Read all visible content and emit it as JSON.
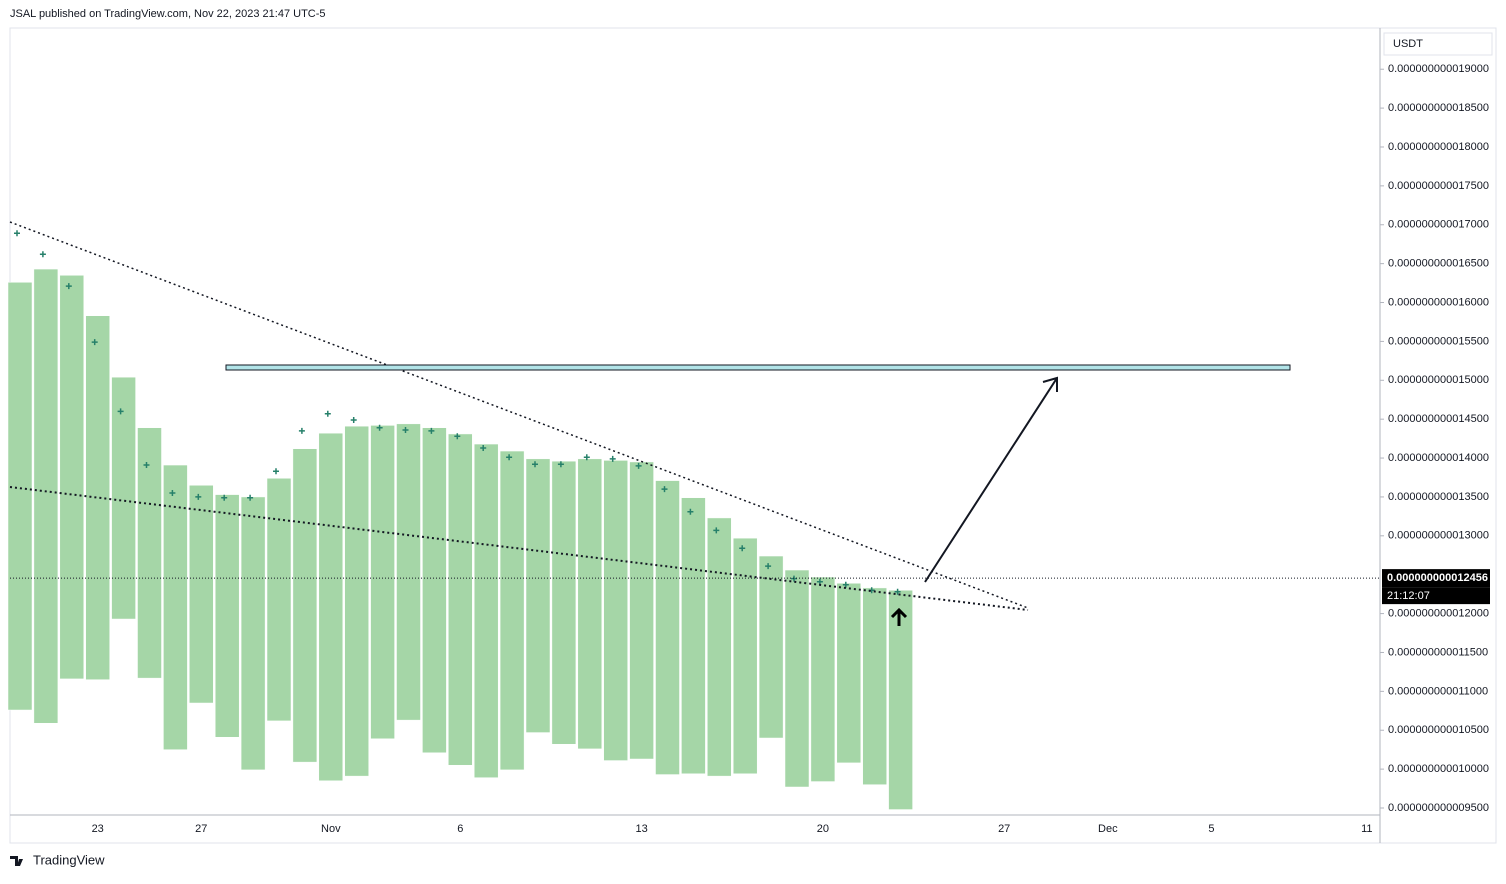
{
  "header": "JSAL published on TradingView.com, Nov 22, 2023 21:47 UTC-5",
  "footer": "TradingView",
  "chart_data": {
    "type": "range-bar",
    "currency": "USDT",
    "categories": [
      null,
      null,
      null,
      "23",
      null,
      null,
      null,
      "27",
      null,
      null,
      null,
      null,
      "Nov",
      null,
      null,
      null,
      null,
      "6",
      null,
      null,
      null,
      null,
      null,
      null,
      "13",
      null,
      null,
      null,
      null,
      null,
      null,
      "20",
      null,
      null,
      null,
      null,
      null,
      null,
      "27",
      null,
      null,
      null,
      "Dec",
      null,
      null,
      null,
      "5",
      null,
      null,
      null,
      null,
      null,
      "11"
    ],
    "high": [
      1.626e-11,
      1.643e-11,
      1.635e-11,
      1.583e-11,
      1.504e-11,
      1.439e-11,
      1.391e-11,
      1.365e-11,
      1.353e-11,
      1.35e-11,
      1.374e-11,
      1.412e-11,
      1.432e-11,
      1.441e-11,
      1.442e-11,
      1.444e-11,
      1.439e-11,
      1.431e-11,
      1.418e-11,
      1.409e-11,
      1.399e-11,
      1.396e-11,
      1.399e-11,
      1.397e-11,
      1.395e-11,
      1.371e-11,
      1.349e-11,
      1.323e-11,
      1.297e-11,
      1.274e-11,
      1.256e-11,
      1.247e-11,
      1.239e-11,
      1.233e-11,
      1.23e-11,
      null,
      null,
      null,
      null,
      null,
      null,
      null,
      null,
      null,
      null,
      null,
      null,
      null,
      null,
      null,
      null,
      null,
      null
    ],
    "low": [
      1.076e-11,
      1.059e-11,
      1.116e-11,
      1.115e-11,
      1.193e-11,
      1.117e-11,
      1.025e-11,
      1.085e-11,
      1.041e-11,
      9.99e-12,
      1.062e-11,
      1.009e-11,
      9.85e-12,
      9.91e-12,
      1.039e-11,
      1.063e-11,
      1.021e-11,
      1.005e-11,
      9.89e-12,
      9.99e-12,
      1.047e-11,
      1.032e-11,
      1.026e-11,
      1.011e-11,
      1.013e-11,
      9.93e-12,
      9.94e-12,
      9.91e-12,
      9.94e-12,
      1.04e-11,
      9.77e-12,
      9.84e-12,
      1.008e-11,
      9.8e-12,
      9.48e-12,
      null,
      null,
      null,
      null,
      null,
      null,
      null,
      null,
      null,
      null,
      null,
      null,
      null,
      null,
      null,
      null,
      null,
      null
    ],
    "markers": [
      1.689e-11,
      1.662e-11,
      1.621e-11,
      1.549e-11,
      1.46e-11,
      1.391e-11,
      1.355e-11,
      1.35e-11,
      1.349e-11,
      1.349e-11,
      1.383e-11,
      1.435e-11,
      1.457e-11,
      1.449e-11,
      1.439e-11,
      1.436e-11,
      1.435e-11,
      1.428e-11,
      1.413e-11,
      1.401e-11,
      1.392e-11,
      1.392e-11,
      1.401e-11,
      1.399e-11,
      1.39e-11,
      1.36e-11,
      1.331e-11,
      1.307e-11,
      1.284e-11,
      1.261e-11,
      1.245e-11,
      1.241e-11,
      1.237e-11,
      1.23e-11,
      1.228e-11,
      null,
      null,
      null,
      null,
      null,
      null,
      null,
      null,
      null,
      null,
      null,
      null,
      null,
      null,
      null,
      null,
      null,
      null
    ],
    "color": "#a5d6a7",
    "marker_color": "#26806a",
    "ylim": [
      9.41e-12,
      1.953e-11
    ],
    "yticks": [
      {
        "value": 9.5e-12,
        "label": "0.000000000009500"
      },
      {
        "value": 1e-11,
        "label": "0.000000000010000"
      },
      {
        "value": 1.05e-11,
        "label": "0.000000000010500"
      },
      {
        "value": 1.1e-11,
        "label": "0.000000000011000"
      },
      {
        "value": 1.15e-11,
        "label": "0.000000000011500"
      },
      {
        "value": 1.2e-11,
        "label": "0.000000000012000"
      },
      {
        "value": 1.3e-11,
        "label": "0.000000000013000"
      },
      {
        "value": 1.35e-11,
        "label": "0.000000000013500"
      },
      {
        "value": 1.4e-11,
        "label": "0.000000000014000"
      },
      {
        "value": 1.45e-11,
        "label": "0.000000000014500"
      },
      {
        "value": 1.5e-11,
        "label": "0.000000000015000"
      },
      {
        "value": 1.55e-11,
        "label": "0.000000000015500"
      },
      {
        "value": 1.6e-11,
        "label": "0.000000000016000"
      },
      {
        "value": 1.65e-11,
        "label": "0.000000000016500"
      },
      {
        "value": 1.7e-11,
        "label": "0.000000000017000"
      },
      {
        "value": 1.75e-11,
        "label": "0.000000000017500"
      },
      {
        "value": 1.8e-11,
        "label": "0.000000000018000"
      },
      {
        "value": 1.85e-11,
        "label": "0.000000000018500"
      },
      {
        "value": 1.9e-11,
        "label": "0.000000000019000"
      }
    ],
    "last_price": {
      "value": 1.2456e-11,
      "label": "0.000000000012456"
    },
    "countdown": "21:12:07"
  }
}
